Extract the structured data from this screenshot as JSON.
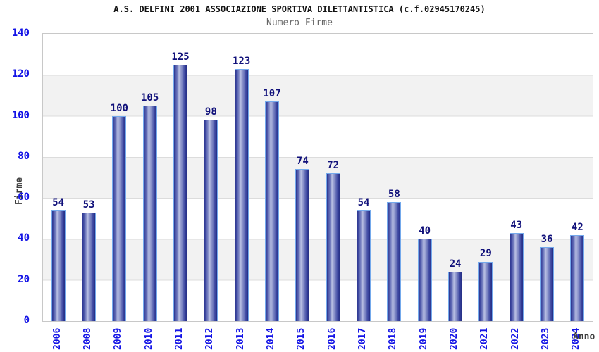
{
  "header": {
    "title": "A.S. DELFINI 2001 ASSOCIAZIONE SPORTIVA DILETTANTISTICA (c.f.02945170245)",
    "subtitle": "Numero Firme"
  },
  "chart_data": {
    "type": "bar",
    "title": "Numero Firme",
    "categories": [
      "2006",
      "2008",
      "2009",
      "2010",
      "2011",
      "2012",
      "2013",
      "2014",
      "2015",
      "2016",
      "2017",
      "2018",
      "2019",
      "2020",
      "2021",
      "2022",
      "2023",
      "2024"
    ],
    "values": [
      54,
      53,
      100,
      105,
      125,
      98,
      123,
      107,
      74,
      72,
      54,
      58,
      40,
      24,
      29,
      43,
      36,
      42
    ],
    "xlabel": "Anno",
    "ylabel": "Firme",
    "ylim": [
      0,
      140
    ],
    "ytick_step": 20,
    "yticks": [
      0,
      20,
      40,
      60,
      80,
      100,
      120,
      140
    ],
    "grid": "horizontal-bands-alternating",
    "legend": false,
    "value_labels_shown": true,
    "colors": {
      "bar_dark": "#2c368f",
      "bar_mid": "#6d77bb",
      "bar_highlight": "#b8bfe3",
      "bar_outline": "#74a9ec",
      "axis_tick_text": "#1414e6",
      "value_label_text": "#10107a",
      "band_gray": "#f2f2f2",
      "grid_line": "#dcdcdc",
      "plot_border": "#c8c8c8",
      "title_text": "#111111",
      "subtitle_text": "#666666",
      "axis_title_text": "#3d3d3d"
    }
  }
}
